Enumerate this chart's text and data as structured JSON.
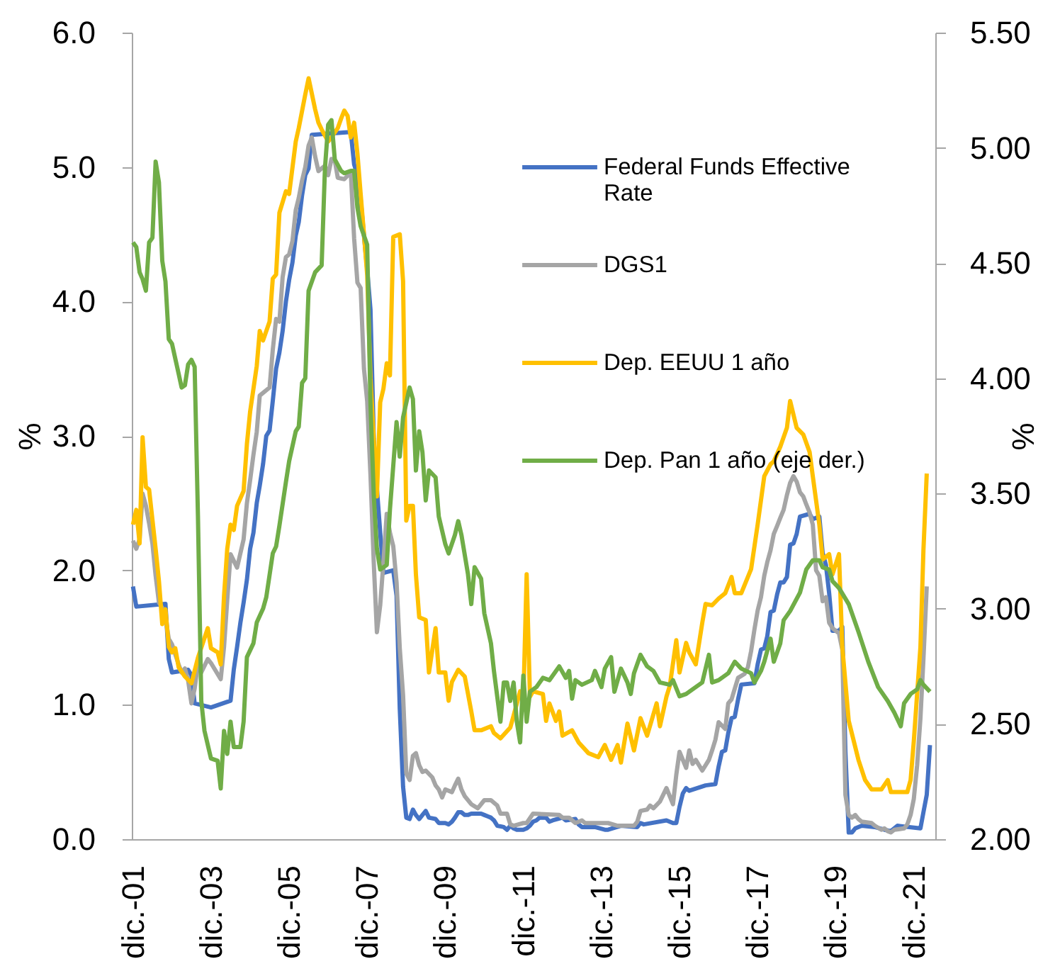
{
  "chart_data": {
    "type": "line",
    "ylabel": "%",
    "y2label": "%",
    "xlim": [
      "2001-11-20",
      "2022-06-20"
    ],
    "xticks": [
      {
        "value": "2001-12",
        "label": "dic.-01"
      },
      {
        "value": "2003-12",
        "label": "dic.-03"
      },
      {
        "value": "2005-12",
        "label": "dic.-05"
      },
      {
        "value": "2007-12",
        "label": "dic.-07"
      },
      {
        "value": "2009-12",
        "label": "dic.-09"
      },
      {
        "value": "2011-12",
        "label": "dic.-11"
      },
      {
        "value": "2013-12",
        "label": "dic.-13"
      },
      {
        "value": "2015-12",
        "label": "dic.-15"
      },
      {
        "value": "2017-12",
        "label": "dic.-17"
      },
      {
        "value": "2019-12",
        "label": "dic.-19"
      },
      {
        "value": "2021-12",
        "label": "dic.-21"
      }
    ],
    "ylim": [
      0,
      6
    ],
    "yticks": [
      {
        "value": 0,
        "label": "0.0"
      },
      {
        "value": 1,
        "label": "1.0"
      },
      {
        "value": 2,
        "label": "2.0"
      },
      {
        "value": 3,
        "label": "3.0"
      },
      {
        "value": 4,
        "label": "4.0"
      },
      {
        "value": 5,
        "label": "5.0"
      },
      {
        "value": 6,
        "label": "6.0"
      }
    ],
    "y2lim": [
      2,
      5.5
    ],
    "y2ticks": [
      {
        "value": 2,
        "label": "2.00"
      },
      {
        "value": 2.5,
        "label": "2.50"
      },
      {
        "value": 3,
        "label": "3.00"
      },
      {
        "value": 3.5,
        "label": "3.50"
      },
      {
        "value": 4,
        "label": "4.00"
      },
      {
        "value": 4.5,
        "label": "4.50"
      },
      {
        "value": 5,
        "label": "5.00"
      },
      {
        "value": 5.5,
        "label": "5.50"
      }
    ],
    "grid": false,
    "legend": "top right",
    "series": [
      {
        "name": "Federal Funds Effective Rate",
        "color": "#4472c4",
        "x": [
          "2001-12",
          "2002-01",
          "2002-10",
          "2002-11",
          "2002-12",
          "2003-05",
          "2003-06",
          "2003-07",
          "2003-12",
          "2004-06",
          "2004-07",
          "2004-08",
          "2004-09",
          "2004-10",
          "2004-11",
          "2004-12",
          "2005-01",
          "2005-02",
          "2005-03",
          "2005-04",
          "2005-05",
          "2005-06",
          "2005-07",
          "2005-08",
          "2005-09",
          "2005-10",
          "2005-11",
          "2005-12",
          "2006-01",
          "2006-02",
          "2006-03",
          "2006-04",
          "2006-05",
          "2006-06",
          "2006-07",
          "2007-07",
          "2007-08",
          "2007-09",
          "2007-10",
          "2007-11",
          "2007-12",
          "2008-01",
          "2008-02",
          "2008-03",
          "2008-04",
          "2008-05",
          "2008-08",
          "2008-09",
          "2008-10",
          "2008-11",
          "2008-12",
          "2009-01",
          "2009-02",
          "2009-03",
          "2009-04",
          "2009-05",
          "2009-06",
          "2009-07",
          "2009-09",
          "2009-10",
          "2009-12",
          "2010-01",
          "2010-02",
          "2010-03",
          "2010-04",
          "2010-05",
          "2010-06",
          "2010-07",
          "2010-08",
          "2010-11",
          "2010-12",
          "2011-01",
          "2011-02",
          "2011-03",
          "2011-04",
          "2011-06",
          "2011-07",
          "2011-08",
          "2011-09",
          "2011-10",
          "2011-12",
          "2012-01",
          "2012-02",
          "2012-03",
          "2012-04",
          "2012-05",
          "2012-07",
          "2012-08",
          "2012-09",
          "2012-12",
          "2013-01",
          "2013-04",
          "2013-05",
          "2013-06",
          "2013-10",
          "2014-01",
          "2014-02",
          "2014-06",
          "2014-11",
          "2014-12",
          "2015-01",
          "2015-08",
          "2015-10",
          "2015-11",
          "2015-12",
          "2016-01",
          "2016-02",
          "2016-03",
          "2016-08",
          "2016-11",
          "2016-12",
          "2017-01",
          "2017-02",
          "2017-03",
          "2017-04",
          "2017-05",
          "2017-06",
          "2017-07",
          "2017-11",
          "2017-12",
          "2018-01",
          "2018-02",
          "2018-03",
          "2018-04",
          "2018-05",
          "2018-06",
          "2018-07",
          "2018-08",
          "2018-09",
          "2018-10",
          "2018-11",
          "2018-12",
          "2019-01",
          "2019-04",
          "2019-05",
          "2019-07",
          "2019-08",
          "2019-09",
          "2019-10",
          "2019-11",
          "2020-01",
          "2020-02",
          "2020-03",
          "2020-04",
          "2020-05",
          "2020-06",
          "2020-08",
          "2020-12",
          "2021-03",
          "2021-05",
          "2021-07",
          "2022-02",
          "2022-03",
          "2022-04",
          "2022-05"
        ],
        "values": [
          1.88,
          1.73,
          1.75,
          1.34,
          1.24,
          1.26,
          1.22,
          1.01,
          0.98,
          1.03,
          1.26,
          1.43,
          1.61,
          1.76,
          1.93,
          2.16,
          2.28,
          2.5,
          2.63,
          2.79,
          3.0,
          3.04,
          3.26,
          3.5,
          3.62,
          3.78,
          4.0,
          4.16,
          4.29,
          4.49,
          4.59,
          4.79,
          4.94,
          4.99,
          5.24,
          5.26,
          5.02,
          4.94,
          4.76,
          4.49,
          4.24,
          3.94,
          2.98,
          2.61,
          2.28,
          1.98,
          2.0,
          1.81,
          0.97,
          0.39,
          0.16,
          0.15,
          0.22,
          0.18,
          0.15,
          0.18,
          0.21,
          0.16,
          0.15,
          0.12,
          0.12,
          0.11,
          0.13,
          0.16,
          0.2,
          0.2,
          0.18,
          0.18,
          0.19,
          0.19,
          0.18,
          0.17,
          0.16,
          0.14,
          0.1,
          0.09,
          0.07,
          0.1,
          0.08,
          0.07,
          0.07,
          0.08,
          0.1,
          0.13,
          0.14,
          0.16,
          0.16,
          0.13,
          0.14,
          0.16,
          0.14,
          0.15,
          0.11,
          0.09,
          0.09,
          0.07,
          0.07,
          0.1,
          0.09,
          0.12,
          0.11,
          0.14,
          0.12,
          0.12,
          0.24,
          0.34,
          0.38,
          0.36,
          0.4,
          0.41,
          0.54,
          0.65,
          0.66,
          0.79,
          0.9,
          0.91,
          1.04,
          1.15,
          1.16,
          1.3,
          1.41,
          1.42,
          1.51,
          1.69,
          1.7,
          1.82,
          1.91,
          1.91,
          1.95,
          2.19,
          2.2,
          2.27,
          2.4,
          2.42,
          2.38,
          2.4,
          2.13,
          2.04,
          1.83,
          1.55,
          1.55,
          1.58,
          0.65,
          0.05,
          0.05,
          0.08,
          0.1,
          0.09,
          0.07,
          0.06,
          0.1,
          0.08,
          0.2,
          0.33,
          0.7
        ]
      },
      {
        "name": "DGS1",
        "color": "#a5a5a5",
        "x": [
          "2001-12",
          "2002-01",
          "2002-02",
          "2002-03",
          "2002-04",
          "2002-05",
          "2002-06",
          "2002-07",
          "2002-08",
          "2002-09",
          "2002-10",
          "2002-11",
          "2002-12",
          "2003-02",
          "2003-03",
          "2003-04",
          "2003-05",
          "2003-06",
          "2003-07",
          "2003-08",
          "2003-09",
          "2003-11",
          "2003-12",
          "2004-03",
          "2004-04",
          "2004-05",
          "2004-06",
          "2004-08",
          "2004-10",
          "2004-11",
          "2004-12",
          "2005-01",
          "2005-02",
          "2005-03",
          "2005-06",
          "2005-07",
          "2005-08",
          "2005-09",
          "2005-10",
          "2005-11",
          "2005-12",
          "2006-01",
          "2006-02",
          "2006-03",
          "2006-04",
          "2006-05",
          "2006-06",
          "2006-07",
          "2006-08",
          "2006-09",
          "2006-11",
          "2006-12",
          "2007-01",
          "2007-02",
          "2007-03",
          "2007-05",
          "2007-07",
          "2007-08",
          "2007-09",
          "2007-10",
          "2007-11",
          "2007-12",
          "2008-01",
          "2008-02",
          "2008-03",
          "2008-04",
          "2008-05",
          "2008-06",
          "2008-07",
          "2008-08",
          "2008-09",
          "2008-10",
          "2008-11",
          "2008-12",
          "2009-01",
          "2009-02",
          "2009-03",
          "2009-04",
          "2009-05",
          "2009-06",
          "2009-08",
          "2009-09",
          "2009-10",
          "2009-11",
          "2009-12",
          "2010-02",
          "2010-03",
          "2010-04",
          "2010-05",
          "2010-06",
          "2010-08",
          "2010-10",
          "2010-12",
          "2011-02",
          "2011-04",
          "2011-05",
          "2011-07",
          "2011-08",
          "2011-09",
          "2011-12",
          "2012-01",
          "2012-03",
          "2012-11",
          "2012-12",
          "2013-02",
          "2013-04",
          "2013-06",
          "2013-07",
          "2014-02",
          "2014-05",
          "2014-10",
          "2014-11",
          "2014-12",
          "2015-02",
          "2015-03",
          "2015-04",
          "2015-06",
          "2015-08",
          "2015-10",
          "2015-11",
          "2015-12",
          "2016-02",
          "2016-03",
          "2016-04",
          "2016-05",
          "2016-07",
          "2016-09",
          "2016-10",
          "2016-11",
          "2016-12",
          "2017-02",
          "2017-03",
          "2017-04",
          "2017-05",
          "2017-06",
          "2017-08",
          "2017-09",
          "2017-10",
          "2017-11",
          "2017-12",
          "2018-01",
          "2018-02",
          "2018-03",
          "2018-04",
          "2018-05",
          "2018-06",
          "2018-07",
          "2018-08",
          "2018-09",
          "2018-10",
          "2018-11",
          "2018-12",
          "2019-01",
          "2019-02",
          "2019-03",
          "2019-04",
          "2019-05",
          "2019-06",
          "2019-07",
          "2019-08",
          "2019-09",
          "2019-10",
          "2019-11",
          "2020-01",
          "2020-02",
          "2020-03",
          "2020-04",
          "2020-05",
          "2020-06",
          "2020-07",
          "2020-08",
          "2020-11",
          "2020-12",
          "2021-02",
          "2021-03",
          "2021-04",
          "2021-05",
          "2021-06",
          "2021-09",
          "2021-10",
          "2021-11",
          "2021-12",
          "2022-01",
          "2022-02",
          "2022-03",
          "2022-04"
        ],
        "values": [
          2.22,
          2.16,
          2.23,
          2.57,
          2.48,
          2.35,
          2.2,
          1.96,
          1.76,
          1.72,
          1.65,
          1.49,
          1.45,
          1.3,
          1.24,
          1.27,
          1.18,
          1.01,
          1.12,
          1.31,
          1.24,
          1.34,
          1.31,
          1.19,
          1.43,
          1.78,
          2.12,
          2.02,
          2.23,
          2.5,
          2.67,
          2.86,
          3.03,
          3.3,
          3.36,
          3.64,
          3.87,
          3.85,
          4.18,
          4.33,
          4.35,
          4.45,
          4.68,
          4.77,
          4.9,
          5.0,
          5.16,
          5.22,
          5.08,
          4.97,
          5.01,
          4.94,
          5.06,
          5.05,
          4.92,
          4.91,
          4.96,
          4.47,
          4.14,
          4.1,
          3.5,
          3.26,
          2.71,
          2.05,
          1.54,
          1.74,
          2.06,
          2.42,
          2.28,
          2.18,
          1.91,
          1.42,
          1.07,
          0.49,
          0.44,
          0.62,
          0.64,
          0.55,
          0.5,
          0.51,
          0.46,
          0.4,
          0.37,
          0.31,
          0.37,
          0.35,
          0.4,
          0.45,
          0.37,
          0.32,
          0.26,
          0.23,
          0.29,
          0.29,
          0.25,
          0.19,
          0.19,
          0.11,
          0.1,
          0.12,
          0.12,
          0.19,
          0.18,
          0.16,
          0.16,
          0.12,
          0.14,
          0.12,
          0.12,
          0.1,
          0.1,
          0.13,
          0.21,
          0.22,
          0.25,
          0.23,
          0.28,
          0.38,
          0.26,
          0.48,
          0.65,
          0.53,
          0.66,
          0.56,
          0.59,
          0.51,
          0.59,
          0.66,
          0.74,
          0.87,
          0.82,
          1.01,
          1.04,
          1.12,
          1.2,
          1.23,
          1.28,
          1.4,
          1.56,
          1.7,
          1.8,
          1.96,
          2.06,
          2.15,
          2.27,
          2.33,
          2.39,
          2.45,
          2.56,
          2.65,
          2.7,
          2.66,
          2.58,
          2.55,
          2.49,
          2.43,
          2.34,
          2.0,
          1.96,
          1.77,
          1.8,
          1.61,
          1.57,
          1.53,
          1.41,
          0.33,
          0.18,
          0.16,
          0.18,
          0.15,
          0.13,
          0.12,
          0.1,
          0.07,
          0.08,
          0.06,
          0.05,
          0.07,
          0.08,
          0.11,
          0.18,
          0.3,
          0.55,
          0.9,
          1.34,
          1.88
        ]
      },
      {
        "name": "Dep. EEUU 1 año",
        "color": "#ffc000",
        "x": [
          "2001-12",
          "2002-01",
          "2002-02",
          "2002-03",
          "2002-04",
          "2002-05",
          "2002-07",
          "2002-08",
          "2002-09",
          "2002-10",
          "2002-11",
          "2002-12",
          "2003-01",
          "2003-02",
          "2003-04",
          "2003-06",
          "2003-08",
          "2003-11",
          "2003-12",
          "2004-02",
          "2004-03",
          "2004-04",
          "2004-05",
          "2004-06",
          "2004-07",
          "2004-08",
          "2004-10",
          "2004-11",
          "2004-12",
          "2005-02",
          "2005-03",
          "2005-04",
          "2005-06",
          "2005-07",
          "2005-08",
          "2005-09",
          "2005-11",
          "2005-12",
          "2006-02",
          "2006-03",
          "2006-05",
          "2006-06",
          "2006-08",
          "2006-09",
          "2006-10",
          "2006-12",
          "2007-01",
          "2007-03",
          "2007-04",
          "2007-05",
          "2007-06",
          "2007-07",
          "2007-08",
          "2007-09",
          "2007-10",
          "2007-11",
          "2007-12",
          "2008-01",
          "2008-03",
          "2008-04",
          "2008-05",
          "2008-06",
          "2008-07",
          "2008-08",
          "2008-10",
          "2008-11",
          "2008-12",
          "2009-01",
          "2009-02",
          "2009-03",
          "2009-04",
          "2009-06",
          "2009-07",
          "2009-09",
          "2009-10",
          "2009-12",
          "2010-01",
          "2010-02",
          "2010-04",
          "2010-06",
          "2010-08",
          "2010-09",
          "2010-11",
          "2011-02",
          "2011-03",
          "2011-05",
          "2011-08",
          "2011-09",
          "2011-11",
          "2011-12",
          "2012-01",
          "2012-02",
          "2012-03",
          "2012-06",
          "2012-07",
          "2012-08",
          "2012-10",
          "2012-11",
          "2012-12",
          "2013-03",
          "2013-05",
          "2013-08",
          "2013-11",
          "2014-01",
          "2014-03",
          "2014-05",
          "2014-06",
          "2014-08",
          "2014-10",
          "2014-12",
          "2015-02",
          "2015-05",
          "2015-06",
          "2015-08",
          "2015-09",
          "2015-11",
          "2015-12",
          "2016-02",
          "2016-03",
          "2016-05",
          "2016-07",
          "2016-08",
          "2016-10",
          "2016-12",
          "2017-02",
          "2017-04",
          "2017-05",
          "2017-07",
          "2017-10",
          "2017-12",
          "2018-02",
          "2018-04",
          "2018-05",
          "2018-07",
          "2018-09",
          "2018-10",
          "2018-12",
          "2019-02",
          "2019-04",
          "2019-05",
          "2019-07",
          "2019-08",
          "2019-10",
          "2019-11",
          "2020-01",
          "2020-02",
          "2020-04",
          "2020-07",
          "2020-09",
          "2020-11",
          "2021-02",
          "2021-04",
          "2021-05",
          "2021-08",
          "2021-10",
          "2021-11",
          "2021-12",
          "2022-02",
          "2022-03",
          "2022-04"
        ],
        "values": [
          2.34,
          2.45,
          2.2,
          2.99,
          2.62,
          2.6,
          2.16,
          1.92,
          1.6,
          1.71,
          1.43,
          1.39,
          1.42,
          1.28,
          1.21,
          1.16,
          1.35,
          1.57,
          1.42,
          1.39,
          1.3,
          1.81,
          2.16,
          2.34,
          2.3,
          2.48,
          2.59,
          2.94,
          3.18,
          3.52,
          3.78,
          3.71,
          3.85,
          4.17,
          4.2,
          4.66,
          4.82,
          4.8,
          5.19,
          5.29,
          5.54,
          5.66,
          5.43,
          5.33,
          5.28,
          5.19,
          5.22,
          5.29,
          5.36,
          5.42,
          5.38,
          5.22,
          5.33,
          5.1,
          4.8,
          4.5,
          4.2,
          3.43,
          2.55,
          3.25,
          3.35,
          3.54,
          3.45,
          4.48,
          4.5,
          4.15,
          2.37,
          2.48,
          2.48,
          1.97,
          1.65,
          1.63,
          1.24,
          1.57,
          1.24,
          1.24,
          1.03,
          1.17,
          1.26,
          1.21,
          0.95,
          0.81,
          0.81,
          0.84,
          0.79,
          0.75,
          0.83,
          0.92,
          1.1,
          1.03,
          1.97,
          1.06,
          1.1,
          1.08,
          0.88,
          1.01,
          0.88,
          0.95,
          0.77,
          0.81,
          0.72,
          0.64,
          0.61,
          0.7,
          0.59,
          0.7,
          0.57,
          0.86,
          0.66,
          0.9,
          0.77,
          1.01,
          0.84,
          1.06,
          1.14,
          1.48,
          1.24,
          1.46,
          1.39,
          1.3,
          1.61,
          1.75,
          1.74,
          1.79,
          1.83,
          1.95,
          1.83,
          1.83,
          2.01,
          2.34,
          2.7,
          2.79,
          2.81,
          2.92,
          3.06,
          3.26,
          3.06,
          3.01,
          2.88,
          2.7,
          2.34,
          2.08,
          2.12,
          1.97,
          2.12,
          1.43,
          0.88,
          0.59,
          0.44,
          0.37,
          0.37,
          0.44,
          0.35,
          0.35,
          0.35,
          0.44,
          0.73,
          1.43,
          2.15,
          2.72
        ]
      },
      {
        "name": "Dep. Pan 1 año (eje der.)",
        "color": "#70ad47",
        "axis": "y2",
        "x": [
          "2001-12",
          "2002-01",
          "2002-02",
          "2002-03",
          "2002-04",
          "2002-05",
          "2002-06",
          "2002-07",
          "2002-08",
          "2002-09",
          "2002-10",
          "2002-11",
          "2002-12",
          "2003-02",
          "2003-03",
          "2003-04",
          "2003-05",
          "2003-06",
          "2003-07",
          "2003-08",
          "2003-09",
          "2003-10",
          "2003-12",
          "2004-02",
          "2004-03",
          "2004-04",
          "2004-05",
          "2004-06",
          "2004-07",
          "2004-09",
          "2004-10",
          "2004-11",
          "2005-01",
          "2005-02",
          "2005-04",
          "2005-05",
          "2005-07",
          "2005-08",
          "2005-09",
          "2005-11",
          "2005-12",
          "2006-02",
          "2006-03",
          "2006-04",
          "2006-05",
          "2006-06",
          "2006-08",
          "2006-10",
          "2006-11",
          "2006-12",
          "2007-01",
          "2007-02",
          "2007-04",
          "2007-05",
          "2007-07",
          "2007-08",
          "2007-09",
          "2007-10",
          "2007-12",
          "2008-01",
          "2008-02",
          "2008-03",
          "2008-04",
          "2008-06",
          "2008-07",
          "2008-09",
          "2008-10",
          "2008-11",
          "2009-01",
          "2009-02",
          "2009-03",
          "2009-04",
          "2009-05",
          "2009-06",
          "2009-07",
          "2009-09",
          "2009-10",
          "2009-12",
          "2010-01",
          "2010-03",
          "2010-04",
          "2010-05",
          "2010-07",
          "2010-08",
          "2010-09",
          "2010-11",
          "2010-12",
          "2011-02",
          "2011-03",
          "2011-05",
          "2011-06",
          "2011-07",
          "2011-08",
          "2011-09",
          "2011-10",
          "2011-11",
          "2011-12",
          "2012-01",
          "2012-02",
          "2012-04",
          "2012-06",
          "2012-08",
          "2012-11",
          "2013-01",
          "2013-02",
          "2013-03",
          "2013-04",
          "2013-06",
          "2013-09",
          "2013-10",
          "2013-12",
          "2014-01",
          "2014-03",
          "2014-04",
          "2014-06",
          "2014-08",
          "2014-09",
          "2014-10",
          "2014-12",
          "2015-02",
          "2015-04",
          "2015-06",
          "2015-09",
          "2015-10",
          "2015-12",
          "2016-02",
          "2016-04",
          "2016-07",
          "2016-09",
          "2016-10",
          "2016-12",
          "2017-03",
          "2017-05",
          "2017-07",
          "2017-10",
          "2017-11",
          "2018-01",
          "2018-02",
          "2018-04",
          "2018-05",
          "2018-07",
          "2018-08",
          "2018-10",
          "2019-01",
          "2019-03",
          "2019-05",
          "2019-07",
          "2019-08",
          "2019-10",
          "2019-11",
          "2020-01",
          "2020-04",
          "2020-07",
          "2020-10",
          "2021-01",
          "2021-04",
          "2021-06",
          "2021-08",
          "2021-09",
          "2021-11",
          "2022-01",
          "2022-02",
          "2022-03",
          "2022-05"
        ],
        "values": [
          4.59,
          4.57,
          4.46,
          4.43,
          4.38,
          4.59,
          4.61,
          4.94,
          4.85,
          4.51,
          4.42,
          4.17,
          4.15,
          4.02,
          3.96,
          3.97,
          4.06,
          4.08,
          4.05,
          3.4,
          2.6,
          2.47,
          2.35,
          2.34,
          2.22,
          2.47,
          2.37,
          2.51,
          2.4,
          2.4,
          2.51,
          2.79,
          2.85,
          2.94,
          3.0,
          3.05,
          3.24,
          3.27,
          3.36,
          3.55,
          3.64,
          3.77,
          3.79,
          3.98,
          4.0,
          4.38,
          4.46,
          4.49,
          4.91,
          5.1,
          5.12,
          4.95,
          4.9,
          4.89,
          4.9,
          4.9,
          4.74,
          4.66,
          4.58,
          3.89,
          3.49,
          3.26,
          3.17,
          3.19,
          3.43,
          3.81,
          3.66,
          3.83,
          3.96,
          3.91,
          3.6,
          3.77,
          3.68,
          3.47,
          3.6,
          3.57,
          3.4,
          3.28,
          3.24,
          3.32,
          3.38,
          3.32,
          3.15,
          3.02,
          3.18,
          3.13,
          2.98,
          2.85,
          2.73,
          2.51,
          2.68,
          2.68,
          2.6,
          2.68,
          2.51,
          2.42,
          2.71,
          2.51,
          2.64,
          2.66,
          2.7,
          2.69,
          2.75,
          2.7,
          2.73,
          2.61,
          2.69,
          2.67,
          2.69,
          2.73,
          2.66,
          2.74,
          2.79,
          2.64,
          2.74,
          2.68,
          2.63,
          2.72,
          2.8,
          2.75,
          2.73,
          2.68,
          2.67,
          2.69,
          2.62,
          2.63,
          2.65,
          2.68,
          2.8,
          2.68,
          2.69,
          2.72,
          2.77,
          2.74,
          2.72,
          2.68,
          2.73,
          2.77,
          2.87,
          2.77,
          2.85,
          2.95,
          2.99,
          3.07,
          3.17,
          3.21,
          3.21,
          3.18,
          3.17,
          3.12,
          3.09,
          3.02,
          2.9,
          2.77,
          2.66,
          2.6,
          2.55,
          2.49,
          2.59,
          2.63,
          2.65,
          2.69,
          2.67,
          2.64
        ]
      }
    ]
  }
}
